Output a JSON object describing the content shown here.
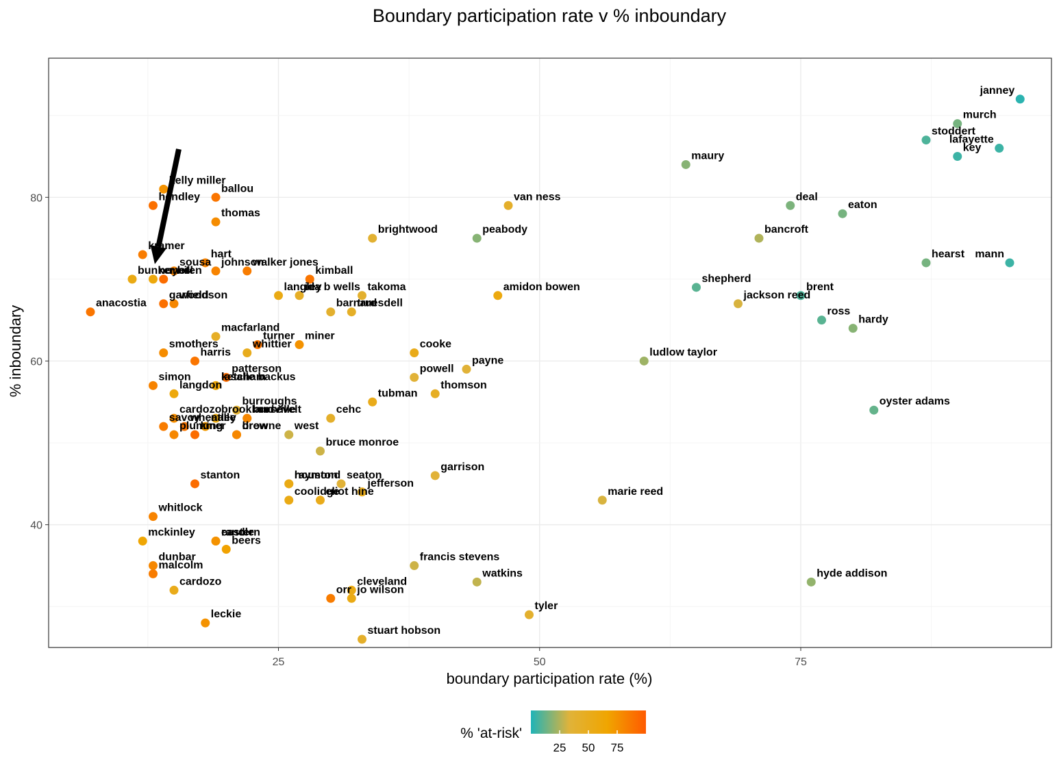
{
  "chart_data": {
    "type": "scatter",
    "title": "Boundary participation rate v % inboundary",
    "xlabel": "boundary participation rate (%)",
    "ylabel": "% inboundary",
    "xlim": [
      3,
      99
    ],
    "ylim": [
      25,
      97
    ],
    "xticks": [
      25,
      50,
      75
    ],
    "yticks": [
      40,
      60,
      80
    ],
    "grid": true,
    "color_legend": {
      "title": "% 'at-risk'",
      "position": "bottom",
      "ticks": [
        25,
        50,
        75
      ],
      "range": [
        0,
        100
      ],
      "colors": [
        "#1fb3b8",
        "#e0b33a",
        "#f0a500",
        "#ff5a00"
      ]
    },
    "annotation": "arrow pointing to sousa",
    "points": [
      {
        "name": "janney",
        "x": 96,
        "y": 92,
        "risk": 2
      },
      {
        "name": "murch",
        "x": 90,
        "y": 89,
        "risk": 15
      },
      {
        "name": "lafayette",
        "x": 94,
        "y": 86,
        "risk": 5
      },
      {
        "name": "stoddert",
        "x": 87,
        "y": 87,
        "risk": 8
      },
      {
        "name": "key",
        "x": 90,
        "y": 85,
        "risk": 5
      },
      {
        "name": "maury",
        "x": 64,
        "y": 84,
        "risk": 18
      },
      {
        "name": "deal",
        "x": 74,
        "y": 79,
        "risk": 16
      },
      {
        "name": "eaton",
        "x": 79,
        "y": 78,
        "risk": 15
      },
      {
        "name": "bancroft",
        "x": 71,
        "y": 75,
        "risk": 25
      },
      {
        "name": "hearst",
        "x": 87,
        "y": 72,
        "risk": 15
      },
      {
        "name": "mann",
        "x": 95,
        "y": 72,
        "risk": 5
      },
      {
        "name": "shepherd",
        "x": 65,
        "y": 69,
        "risk": 10
      },
      {
        "name": "brent",
        "x": 75,
        "y": 68,
        "risk": 8
      },
      {
        "name": "jackson reed",
        "x": 69,
        "y": 67,
        "risk": 32
      },
      {
        "name": "ross",
        "x": 77,
        "y": 65,
        "risk": 10
      },
      {
        "name": "hardy",
        "x": 80,
        "y": 64,
        "risk": 18
      },
      {
        "name": "ludlow taylor",
        "x": 60,
        "y": 60,
        "risk": 22
      },
      {
        "name": "oyster adams",
        "x": 82,
        "y": 54,
        "risk": 12
      },
      {
        "name": "marie reed",
        "x": 56,
        "y": 43,
        "risk": 32
      },
      {
        "name": "hyde addison",
        "x": 76,
        "y": 33,
        "risk": 20
      },
      {
        "name": "van ness",
        "x": 47,
        "y": 79,
        "risk": 42
      },
      {
        "name": "peabody",
        "x": 44,
        "y": 75,
        "risk": 18
      },
      {
        "name": "amidon bowen",
        "x": 46,
        "y": 68,
        "risk": 58
      },
      {
        "name": "brightwood",
        "x": 34,
        "y": 75,
        "risk": 38
      },
      {
        "name": "takoma",
        "x": 33,
        "y": 68,
        "risk": 40
      },
      {
        "name": "truesdell",
        "x": 32,
        "y": 66,
        "risk": 44
      },
      {
        "name": "barnard",
        "x": 30,
        "y": 66,
        "risk": 40
      },
      {
        "name": "cooke",
        "x": 38,
        "y": 61,
        "risk": 52
      },
      {
        "name": "payne",
        "x": 43,
        "y": 59,
        "risk": 35
      },
      {
        "name": "powell",
        "x": 38,
        "y": 58,
        "risk": 35
      },
      {
        "name": "tubman",
        "x": 34,
        "y": 55,
        "risk": 52
      },
      {
        "name": "thomson",
        "x": 40,
        "y": 56,
        "risk": 46
      },
      {
        "name": "cehc",
        "x": 30,
        "y": 53,
        "risk": 42
      },
      {
        "name": "west",
        "x": 26,
        "y": 51,
        "risk": 30
      },
      {
        "name": "bruce monroe",
        "x": 29,
        "y": 49,
        "risk": 30
      },
      {
        "name": "garrison",
        "x": 40,
        "y": 46,
        "risk": 35
      },
      {
        "name": "seaton",
        "x": 31,
        "y": 45,
        "risk": 35
      },
      {
        "name": "jefferson",
        "x": 33,
        "y": 44,
        "risk": 50
      },
      {
        "name": "eliot hine",
        "x": 29,
        "y": 43,
        "risk": 52
      },
      {
        "name": "coolidge",
        "x": 26,
        "y": 43,
        "risk": 55
      },
      {
        "name": "houston",
        "x": 26,
        "y": 45,
        "risk": 52
      },
      {
        "name": "francis stevens",
        "x": 38,
        "y": 35,
        "risk": 30
      },
      {
        "name": "watkins",
        "x": 44,
        "y": 33,
        "risk": 28
      },
      {
        "name": "tyler",
        "x": 49,
        "y": 29,
        "risk": 40
      },
      {
        "name": "cleveland",
        "x": 32,
        "y": 32,
        "risk": 55
      },
      {
        "name": "jo wilson",
        "x": 32,
        "y": 31,
        "risk": 55
      },
      {
        "name": "orr",
        "x": 30,
        "y": 31,
        "risk": 85
      },
      {
        "name": "stuart hobson",
        "x": 33,
        "y": 26,
        "risk": 42
      },
      {
        "name": "kelly miller",
        "x": 14,
        "y": 81,
        "risk": 75
      },
      {
        "name": "hendley",
        "x": 13,
        "y": 79,
        "risk": 90
      },
      {
        "name": "ballou",
        "x": 19,
        "y": 80,
        "risk": 88
      },
      {
        "name": "thomas",
        "x": 19,
        "y": 77,
        "risk": 78
      },
      {
        "name": "kramer",
        "x": 12,
        "y": 73,
        "risk": 85
      },
      {
        "name": "hart",
        "x": 18,
        "y": 72,
        "risk": 82
      },
      {
        "name": "walker jones",
        "x": 22,
        "y": 71,
        "risk": 85
      },
      {
        "name": "sousa",
        "x": 15,
        "y": 71,
        "risk": 82
      },
      {
        "name": "johnson",
        "x": 19,
        "y": 71,
        "risk": 82
      },
      {
        "name": "bunker hill",
        "x": 11,
        "y": 70,
        "risk": 55
      },
      {
        "name": "noyes",
        "x": 13,
        "y": 70,
        "risk": 60
      },
      {
        "name": "moten",
        "x": 14,
        "y": 70,
        "risk": 92
      },
      {
        "name": "kimball",
        "x": 28,
        "y": 70,
        "risk": 88
      },
      {
        "name": "ida b wells",
        "x": 27,
        "y": 68,
        "risk": 45
      },
      {
        "name": "langley",
        "x": 25,
        "y": 68,
        "risk": 55
      },
      {
        "name": "garfield",
        "x": 14,
        "y": 67,
        "risk": 90
      },
      {
        "name": "woodson",
        "x": 15,
        "y": 67,
        "risk": 80
      },
      {
        "name": "anacostia",
        "x": 7,
        "y": 66,
        "risk": 88
      },
      {
        "name": "macfarland",
        "x": 19,
        "y": 63,
        "risk": 45
      },
      {
        "name": "turner",
        "x": 23,
        "y": 62,
        "risk": 88
      },
      {
        "name": "miner",
        "x": 27,
        "y": 62,
        "risk": 75
      },
      {
        "name": "whittier",
        "x": 22,
        "y": 61,
        "risk": 50
      },
      {
        "name": "smothers",
        "x": 14,
        "y": 61,
        "risk": 78
      },
      {
        "name": "harris",
        "x": 17,
        "y": 60,
        "risk": 88
      },
      {
        "name": "patterson",
        "x": 20,
        "y": 58,
        "risk": 92
      },
      {
        "name": "ketcham",
        "x": 19,
        "y": 57,
        "risk": 62
      },
      {
        "name": "simon",
        "x": 13,
        "y": 57,
        "risk": 82
      },
      {
        "name": "lasalle backus",
        "x": 19,
        "y": 57,
        "risk": 62
      },
      {
        "name": "burroughs",
        "x": 21,
        "y": 54,
        "risk": 38
      },
      {
        "name": "langdon",
        "x": 15,
        "y": 56,
        "risk": 60
      },
      {
        "name": "burrville",
        "x": 22,
        "y": 53,
        "risk": 80
      },
      {
        "name": "brookland",
        "x": 19,
        "y": 53,
        "risk": 55
      },
      {
        "name": "cardozo",
        "x": 15,
        "y": 53,
        "risk": 78
      },
      {
        "name": "nalle",
        "x": 18,
        "y": 52,
        "risk": 72
      },
      {
        "name": "roosevelt",
        "x": 22,
        "y": 53,
        "risk": 80
      },
      {
        "name": "savoy",
        "x": 14,
        "y": 52,
        "risk": 85
      },
      {
        "name": "wheatley",
        "x": 16,
        "y": 52,
        "risk": 88
      },
      {
        "name": "king",
        "x": 17,
        "y": 51,
        "risk": 92
      },
      {
        "name": "plummer",
        "x": 15,
        "y": 51,
        "risk": 80
      },
      {
        "name": "browne",
        "x": 21,
        "y": 51,
        "risk": 80
      },
      {
        "name": "drew",
        "x": 21,
        "y": 51,
        "risk": 80
      },
      {
        "name": "stanton",
        "x": 17,
        "y": 45,
        "risk": 92
      },
      {
        "name": "raymond",
        "x": 26,
        "y": 45,
        "risk": 55
      },
      {
        "name": "whitlock",
        "x": 13,
        "y": 41,
        "risk": 82
      },
      {
        "name": "mckinley",
        "x": 12,
        "y": 38,
        "risk": 65
      },
      {
        "name": "randle",
        "x": 19,
        "y": 38,
        "risk": 75
      },
      {
        "name": "beers",
        "x": 20,
        "y": 37,
        "risk": 68
      },
      {
        "name": "eastern",
        "x": 19,
        "y": 38,
        "risk": 75
      },
      {
        "name": "dunbar",
        "x": 13,
        "y": 35,
        "risk": 80
      },
      {
        "name": "malcolm",
        "x": 13,
        "y": 34,
        "risk": 85
      },
      {
        "name": "cardozo",
        "x": 15,
        "y": 32,
        "risk": 52
      },
      {
        "name": "leckie",
        "x": 18,
        "y": 28,
        "risk": 75
      }
    ]
  }
}
